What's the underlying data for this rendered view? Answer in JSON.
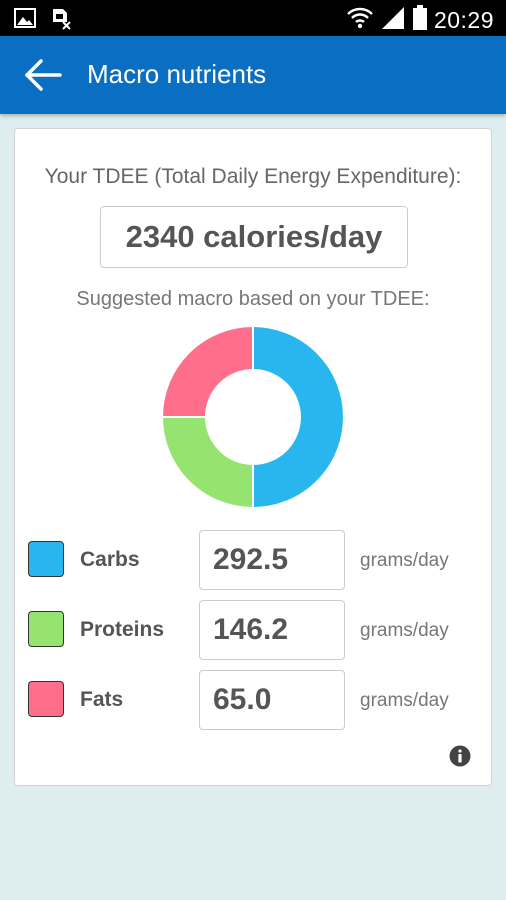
{
  "status_bar": {
    "time": "20:29",
    "icons": [
      "image-icon",
      "sim-error-icon",
      "wifi-icon",
      "signal-icon",
      "battery-icon"
    ]
  },
  "app_bar": {
    "title": "Macro nutrients",
    "back_icon": "arrow-left-icon"
  },
  "tdee": {
    "label": "Your TDEE (Total Daily Energy Expenditure):",
    "value": "2340 calories/day"
  },
  "suggested_label": "Suggested macro based on your TDEE:",
  "chart_data": {
    "type": "pie",
    "title": "",
    "categories": [
      "Carbs",
      "Proteins",
      "Fats"
    ],
    "values": [
      50,
      25,
      25
    ],
    "colors": [
      "#29b6ef",
      "#95e470",
      "#ff6f8c"
    ]
  },
  "macros": [
    {
      "name": "Carbs",
      "value": "292.5",
      "unit": "grams/day",
      "color": "#29b6ef"
    },
    {
      "name": "Proteins",
      "value": "146.2",
      "unit": "grams/day",
      "color": "#95e470"
    },
    {
      "name": "Fats",
      "value": "65.0",
      "unit": "grams/day",
      "color": "#ff6f8c"
    }
  ],
  "info_icon": "info-icon"
}
